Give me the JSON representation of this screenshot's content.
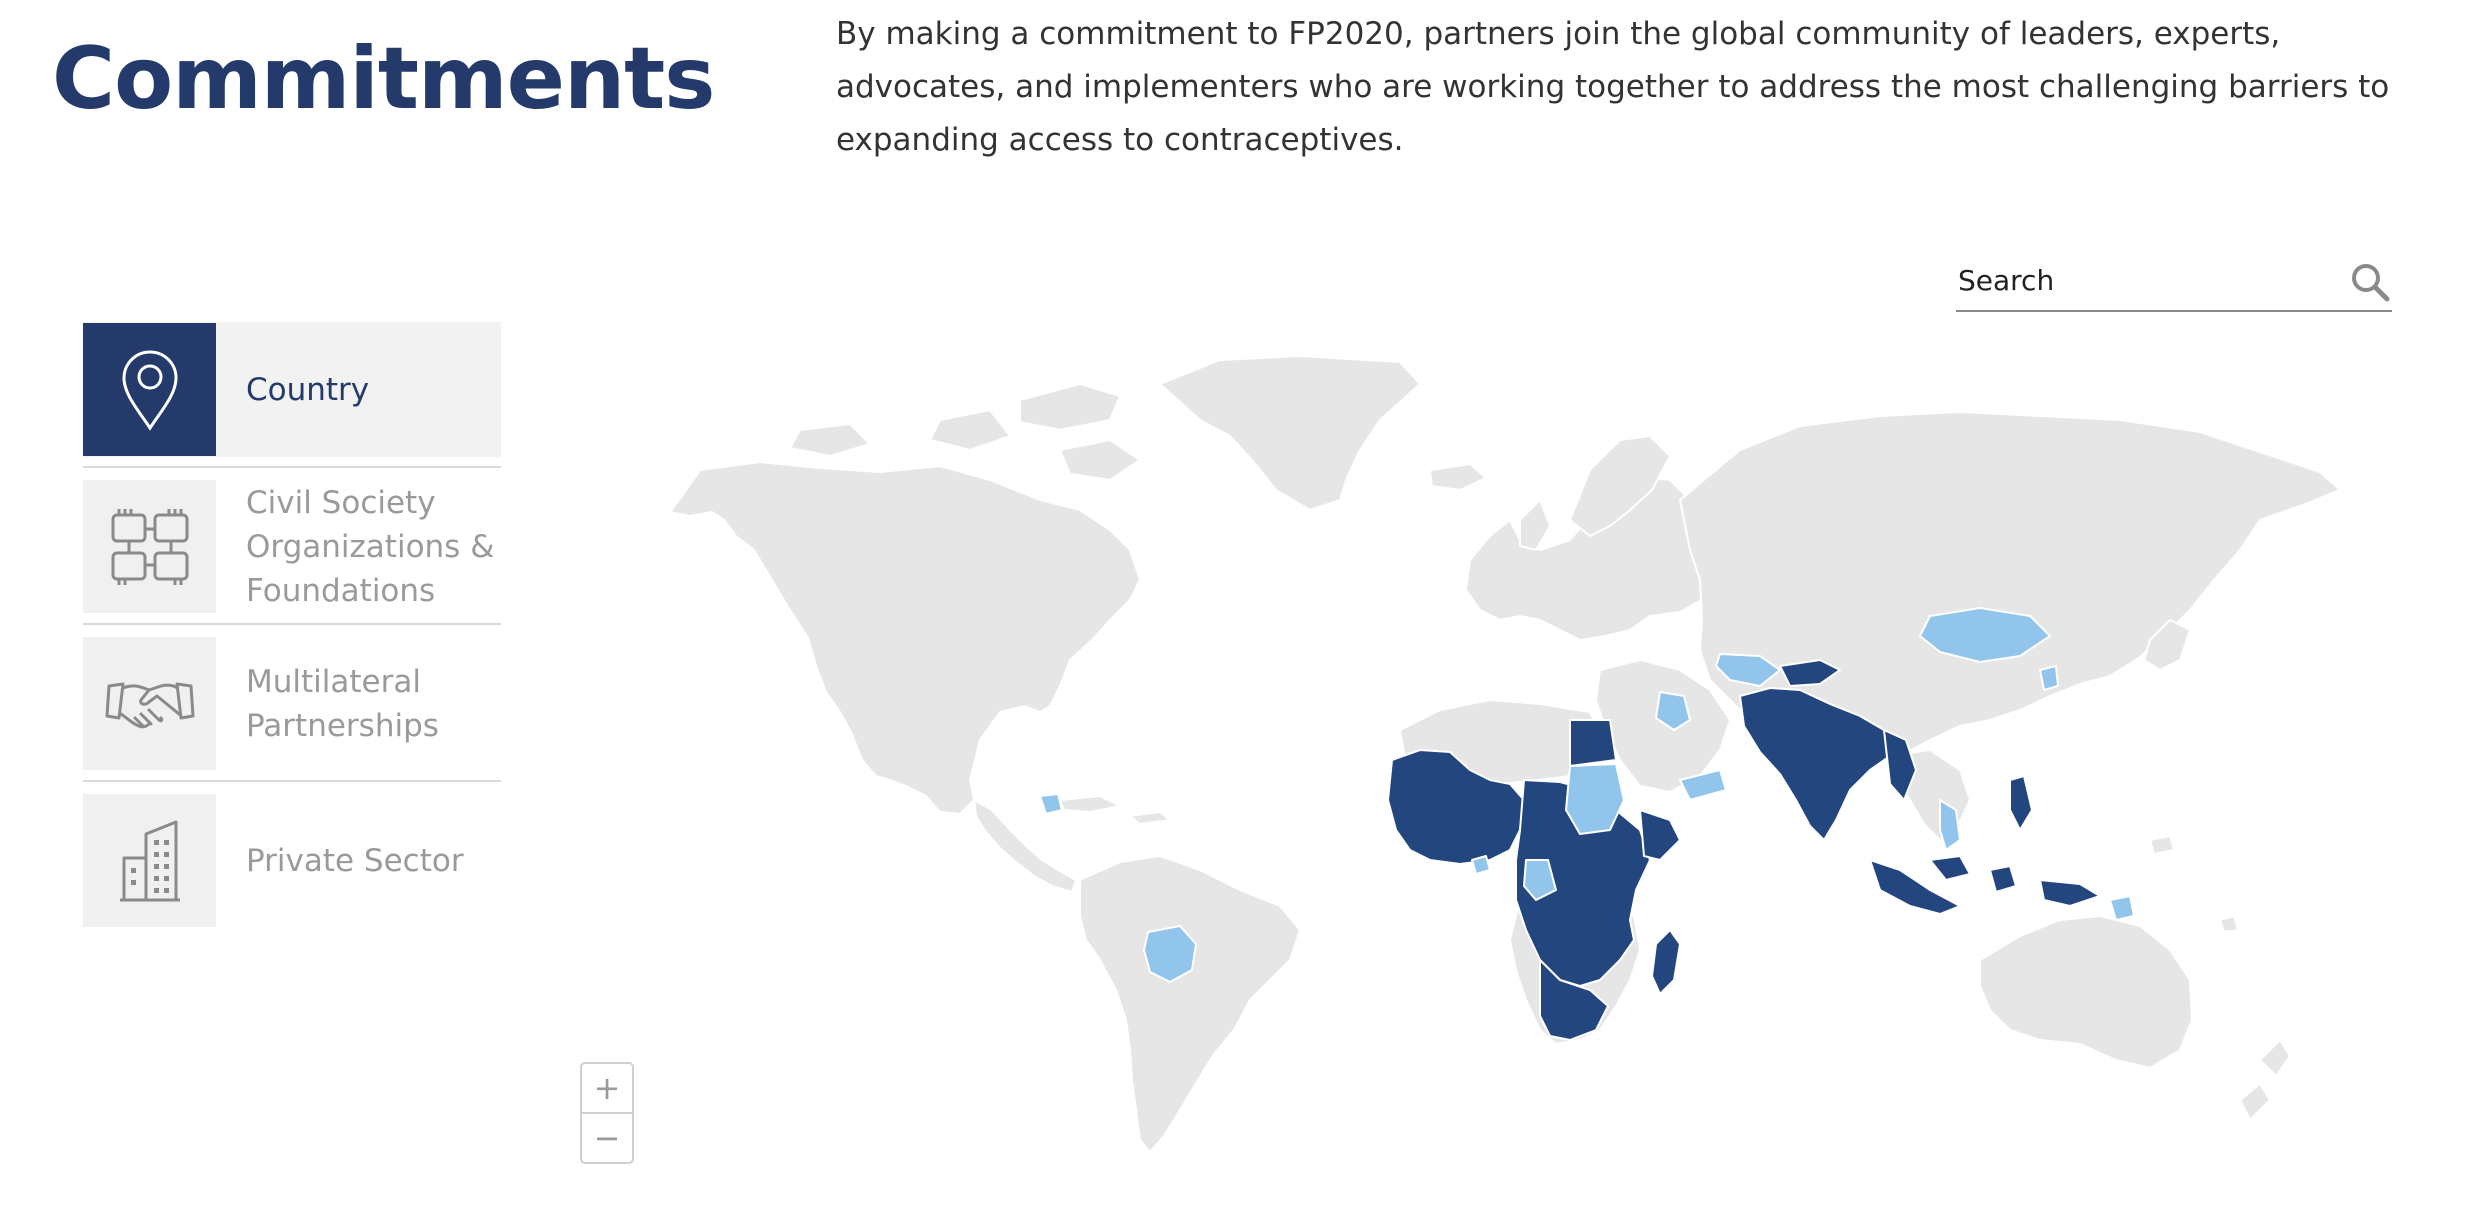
{
  "page": {
    "title": "Commitments",
    "intro": "By making a commitment to FP2020, partners join the global community of leaders, experts, advocates, and implementers who are working together to address the most challenging barriers to expanding access to contraceptives."
  },
  "search": {
    "placeholder": "Search",
    "icon": "search-icon"
  },
  "sidebar": {
    "items": [
      {
        "label": "Country",
        "icon": "map-pin-icon",
        "active": true
      },
      {
        "label": "Civil Society Organizations & Foundations",
        "icon": "linked-hands-icon",
        "active": false
      },
      {
        "label": "Multilateral Partnerships",
        "icon": "handshake-icon",
        "active": false
      },
      {
        "label": "Private Sector",
        "icon": "building-icon",
        "active": false
      }
    ]
  },
  "map": {
    "colors": {
      "ocean": "#ffffff",
      "land": "#e6e6e6",
      "border": "#ffffff",
      "commitment": "#24467f",
      "partner": "#91c5ec"
    }
  },
  "zoom": {
    "in_label": "+",
    "out_label": "−"
  }
}
